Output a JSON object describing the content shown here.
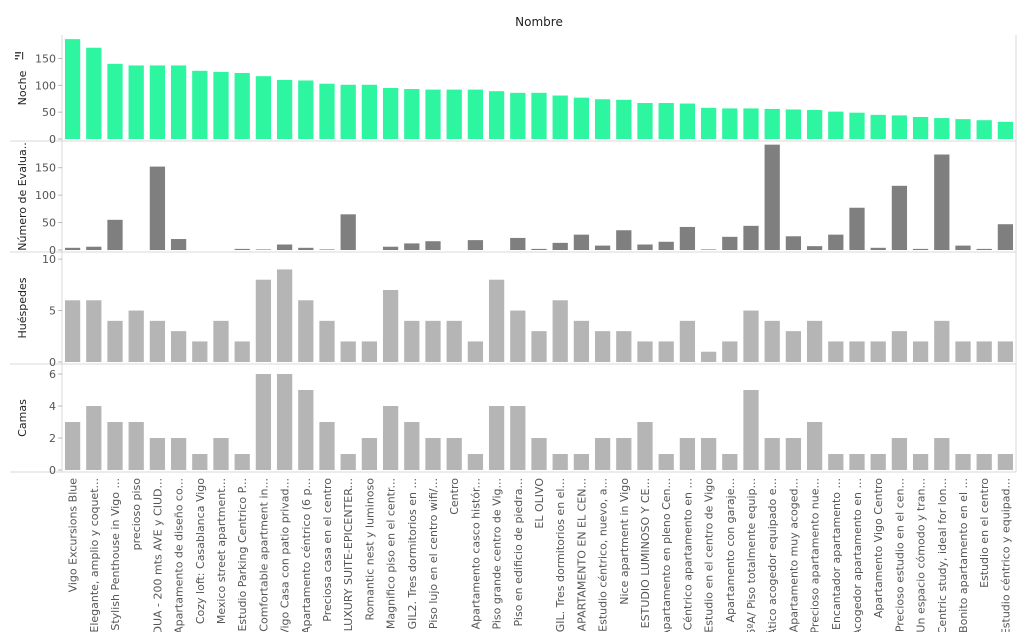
{
  "chart_data": {
    "type": "bar",
    "title": "Nombre",
    "categories": [
      "Vigo Excursions Blue",
      "Elegante, amplio y coquet...",
      "Stylish Penthouse in Vigo ...",
      "precioso piso",
      "DUA - 200 mts AVE y CIUD...",
      "Apartamento de diseño co...",
      "Cozy loft: Casablanca Vigo",
      "Mexico street apartment...",
      "Estudio Parking Centrico P...",
      "Comfortable apartment in...",
      "Vigo Casa con patio privad...",
      "Apartamento céntrico (6 p...",
      "Preciosa casa en el centro",
      "LUXURY SUITE-EPICENTER...",
      "Romantic nest y luminoso",
      "Magnifico piso en el centr...",
      "GIL2. Tres dormitorios en ...",
      "Piso lujo en el centro wifi/...",
      "Centro",
      "Apartamento casco histór...",
      "Piso grande centro de Vig...",
      "Piso en edificio de piedra...",
      "EL OLIVO",
      "GIL. Tres dormitorios en el...",
      "APARTAMENTO EN EL CEN...",
      "Estudio céntrico, nuevo, a...",
      "Nice apartment in Vigo",
      "ESTUDIO LUMINOSO Y CE...",
      "Apartamento en pleno Cen...",
      "Céntrico apartamento en ...",
      "Estudio en el centro de Vigo",
      "Apartamento con garaje...",
      "6ºA/ Piso totalmente equip...",
      "Ático acogedor equipado e...",
      "Apartamento muy acoged...",
      "Precioso apartamento nue...",
      "Encantador apartamento ...",
      "Acogedor apartamento en ...",
      "Apartamento Vigo Centro",
      "Precioso estudio en el cen...",
      "Un espacio cómodo y tran...",
      "Centric study, ideal for lon...",
      "Bonito apartamento en el ...",
      "Estudio en el centro",
      "Estudio céntrico y equipad..."
    ],
    "panels": [
      {
        "ylabel": "Noche",
        "color": "#2ef5a0",
        "ylim": [
          0,
          190
        ],
        "ticks": [
          0,
          50,
          100,
          150
        ],
        "values": [
          186,
          170,
          140,
          137,
          137,
          137,
          127,
          125,
          123,
          117,
          110,
          109,
          103,
          101,
          101,
          95,
          93,
          92,
          92,
          92,
          89,
          86,
          86,
          81,
          77,
          74,
          73,
          67,
          67,
          66,
          58,
          57,
          57,
          56,
          55,
          54,
          51,
          49,
          45,
          44,
          41,
          39,
          37,
          35,
          32
        ]
      },
      {
        "ylabel": "Número de Evalua..",
        "color": "#7f7f7f",
        "ylim": [
          0,
          195
        ],
        "ticks": [
          0,
          50,
          100,
          150
        ],
        "values": [
          4,
          6,
          55,
          0,
          152,
          20,
          0,
          0,
          2,
          1,
          10,
          4,
          1,
          65,
          0,
          6,
          12,
          16,
          0,
          18,
          0,
          22,
          2,
          13,
          28,
          8,
          36,
          10,
          15,
          42,
          1,
          24,
          44,
          192,
          25,
          7,
          28,
          77,
          4,
          117,
          2,
          174,
          8,
          2,
          47
        ]
      },
      {
        "ylabel": "Huéspedes",
        "color": "#b5b5b5",
        "ylim": [
          0,
          10.5
        ],
        "ticks": [
          0,
          5,
          10
        ],
        "values": [
          6,
          6,
          4,
          5,
          4,
          3,
          2,
          4,
          2,
          8,
          9,
          6,
          4,
          2,
          2,
          7,
          4,
          4,
          4,
          2,
          8,
          5,
          3,
          6,
          4,
          3,
          3,
          2,
          2,
          4,
          1,
          2,
          5,
          4,
          3,
          4,
          2,
          2,
          2,
          3,
          2,
          4,
          2,
          2,
          2
        ]
      },
      {
        "ylabel": "Camas",
        "color": "#b5b5b5",
        "ylim": [
          0,
          6.5
        ],
        "ticks": [
          0,
          2,
          4,
          6
        ],
        "values": [
          3,
          4,
          3,
          3,
          2,
          2,
          1,
          2,
          1,
          6,
          6,
          5,
          3,
          1,
          2,
          4,
          3,
          2,
          2,
          1,
          4,
          4,
          2,
          1,
          1,
          2,
          2,
          3,
          1,
          2,
          2,
          1,
          5,
          2,
          2,
          3,
          1,
          1,
          1,
          2,
          1,
          2,
          1,
          1,
          1
        ]
      }
    ]
  }
}
